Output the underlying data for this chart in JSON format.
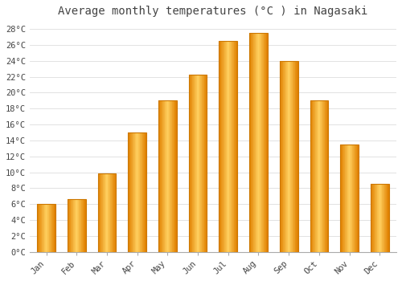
{
  "title": "Average monthly temperatures (°C ) in Nagasaki",
  "months": [
    "Jan",
    "Feb",
    "Mar",
    "Apr",
    "May",
    "Jun",
    "Jul",
    "Aug",
    "Sep",
    "Oct",
    "Nov",
    "Dec"
  ],
  "values": [
    6.0,
    6.6,
    9.9,
    15.0,
    19.0,
    22.3,
    26.5,
    27.5,
    24.0,
    19.0,
    13.5,
    8.5
  ],
  "bar_color_main": "#FFA500",
  "bar_color_light": "#FFD060",
  "bar_color_dark": "#E08000",
  "bar_edge_color": "#CC7700",
  "background_color": "#FFFFFF",
  "grid_color": "#DDDDDD",
  "text_color": "#444444",
  "ylim": [
    0,
    29
  ],
  "yticks": [
    0,
    2,
    4,
    6,
    8,
    10,
    12,
    14,
    16,
    18,
    20,
    22,
    24,
    26,
    28
  ],
  "title_fontsize": 10,
  "tick_fontsize": 7.5,
  "font_family": "monospace"
}
